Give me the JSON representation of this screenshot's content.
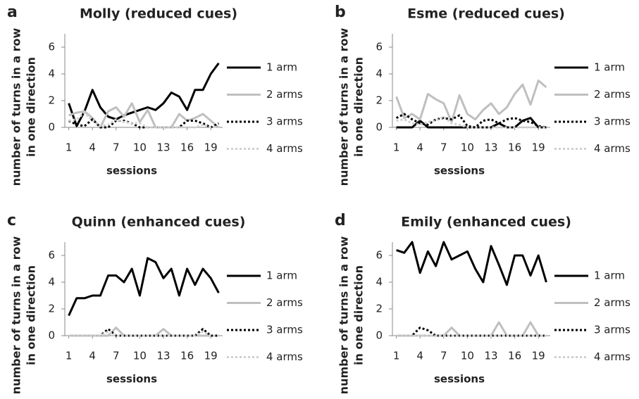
{
  "chart_data": [
    {
      "type": "line",
      "panel": "a",
      "title": "Molly (reduced cues)",
      "xlabel": "sessions",
      "ylabel": [
        "number of turns in a row",
        "in one direction"
      ],
      "x": [
        1,
        2,
        3,
        4,
        5,
        6,
        7,
        8,
        9,
        10,
        11,
        12,
        13,
        14,
        15,
        16,
        17,
        18,
        19,
        20
      ],
      "xlim": [
        0.5,
        20.5
      ],
      "xticks": [
        1,
        4,
        7,
        10,
        13,
        16,
        19
      ],
      "ylim": [
        0,
        7
      ],
      "yticks": [
        0,
        2,
        4,
        6
      ],
      "series": [
        {
          "name": "1 arm",
          "color": "#000000",
          "style": "solid",
          "values": [
            1.8,
            0.1,
            1.2,
            2.8,
            1.5,
            0.8,
            0.6,
            0.9,
            1.1,
            1.3,
            1.5,
            1.3,
            1.8,
            2.6,
            2.3,
            1.3,
            2.8,
            2.8,
            4.0,
            4.8
          ]
        },
        {
          "name": "2 arms",
          "color": "#bfbfbf",
          "style": "solid",
          "values": [
            0.9,
            1.1,
            1.2,
            0.7,
            0,
            1.2,
            1.5,
            0.8,
            1.8,
            0.4,
            1.3,
            0,
            0,
            0,
            1.0,
            0.5,
            0.7,
            1.0,
            0.5,
            0
          ]
        },
        {
          "name": "3 arms",
          "color": "#000000",
          "style": "dotted",
          "values": [
            0.5,
            0.2,
            0.1,
            0.6,
            0,
            0,
            0.5,
            0.5,
            0.3,
            0,
            0,
            0,
            0,
            0,
            0,
            0.5,
            0.5,
            0.3,
            0,
            0.3
          ]
        },
        {
          "name": "4 arms",
          "color": "#d0d0d0",
          "style": "dotted",
          "values": [
            0.5,
            0.6,
            1.1,
            0.5,
            0.1,
            0.2,
            0.6,
            0.4,
            0.3,
            0.3,
            0,
            0,
            0,
            0,
            0,
            0,
            0,
            0.2,
            0,
            0.1
          ]
        }
      ]
    },
    {
      "type": "line",
      "panel": "b",
      "title": "Esme (reduced cues)",
      "xlabel": "sessions",
      "ylabel": [
        "number of turns in a row",
        "in one direction"
      ],
      "x": [
        1,
        2,
        3,
        4,
        5,
        6,
        7,
        8,
        9,
        10,
        11,
        12,
        13,
        14,
        15,
        16,
        17,
        18,
        19,
        20
      ],
      "xlim": [
        0.5,
        20.5
      ],
      "xticks": [
        1,
        4,
        7,
        10,
        13,
        16,
        19
      ],
      "ylim": [
        0,
        7
      ],
      "yticks": [
        0,
        2,
        4,
        6
      ],
      "series": [
        {
          "name": "1 arm",
          "color": "#000000",
          "style": "solid",
          "values": [
            0,
            0,
            0,
            0.5,
            0,
            0,
            0,
            0,
            0,
            0,
            0,
            0,
            0,
            0.3,
            0,
            0,
            0.5,
            0.7,
            0,
            0
          ]
        },
        {
          "name": "2 arms",
          "color": "#bfbfbf",
          "style": "solid",
          "values": [
            2.3,
            0.7,
            1.0,
            0.6,
            2.5,
            2.1,
            1.8,
            0.4,
            2.4,
            1.0,
            0.6,
            1.3,
            1.8,
            1.0,
            1.5,
            2.5,
            3.2,
            1.7,
            3.5,
            3.0
          ]
        },
        {
          "name": "3 arms",
          "color": "#000000",
          "style": "dotted",
          "values": [
            0.7,
            1.0,
            0.6,
            0.3,
            0.2,
            0.6,
            0.7,
            0.6,
            0.9,
            0.1,
            0,
            0.5,
            0.6,
            0.3,
            0.6,
            0.7,
            0.5,
            0.4,
            0.1,
            0
          ]
        },
        {
          "name": "4 arms",
          "color": "#d0d0d0",
          "style": "dotted",
          "values": [
            0.5,
            0.6,
            0.3,
            0.2,
            0.4,
            0.5,
            0.8,
            0.3,
            0.2,
            0,
            0,
            0,
            0,
            0,
            0,
            0,
            0,
            0,
            0,
            0
          ]
        }
      ]
    },
    {
      "type": "line",
      "panel": "c",
      "title": "Quinn (enhanced cues)",
      "xlabel": "sessions",
      "ylabel": [
        "number of turns in a row",
        "in one direction"
      ],
      "x": [
        1,
        2,
        3,
        4,
        5,
        6,
        7,
        8,
        9,
        10,
        11,
        12,
        13,
        14,
        15,
        16,
        17,
        18,
        19,
        20
      ],
      "xlim": [
        0.5,
        20.5
      ],
      "xticks": [
        1,
        4,
        7,
        10,
        13,
        16,
        19
      ],
      "ylim": [
        0,
        7
      ],
      "yticks": [
        0,
        2,
        4,
        6
      ],
      "series": [
        {
          "name": "1 arm",
          "color": "#000000",
          "style": "solid",
          "values": [
            1.5,
            2.8,
            2.8,
            3.0,
            3.0,
            4.5,
            4.5,
            4.0,
            5.0,
            3.0,
            5.8,
            5.5,
            4.3,
            5.0,
            3.0,
            5.0,
            3.8,
            5.0,
            4.3,
            3.2
          ]
        },
        {
          "name": "2 arms",
          "color": "#bfbfbf",
          "style": "solid",
          "values": [
            0,
            0,
            0,
            0,
            0,
            0,
            0.6,
            0,
            0,
            0,
            0,
            0,
            0.5,
            0,
            0,
            0,
            0,
            0,
            0,
            0
          ]
        },
        {
          "name": "3 arms",
          "color": "#000000",
          "style": "dotted",
          "values": [
            0,
            0,
            0,
            0,
            0,
            0.5,
            0,
            0,
            0,
            0,
            0,
            0,
            0,
            0,
            0,
            0,
            0,
            0.5,
            0,
            0
          ]
        },
        {
          "name": "4 arms",
          "color": "#d0d0d0",
          "style": "dotted",
          "values": [
            0,
            0,
            0,
            0,
            0,
            0.3,
            0,
            0,
            0,
            0,
            0,
            0,
            0,
            0,
            0,
            0,
            0,
            0.3,
            0,
            0
          ]
        }
      ]
    },
    {
      "type": "line",
      "panel": "d",
      "title": "Emily (enhanced cues)",
      "xlabel": "sessions",
      "ylabel": [
        "number of turns in a row",
        "in one direction"
      ],
      "x": [
        1,
        2,
        3,
        4,
        5,
        6,
        7,
        8,
        9,
        10,
        11,
        12,
        13,
        14,
        15,
        16,
        17,
        18,
        19,
        20
      ],
      "xlim": [
        0.5,
        20.5
      ],
      "xticks": [
        1,
        4,
        7,
        10,
        13,
        16,
        19
      ],
      "ylim": [
        0,
        7
      ],
      "yticks": [
        0,
        2,
        4,
        6
      ],
      "series": [
        {
          "name": "1 arm",
          "color": "#000000",
          "style": "solid",
          "values": [
            6.4,
            6.2,
            7.0,
            4.7,
            6.3,
            5.2,
            7.0,
            5.7,
            6.0,
            6.3,
            5.0,
            4.0,
            6.7,
            5.3,
            3.8,
            6.0,
            6.0,
            4.5,
            6.0,
            4.0
          ]
        },
        {
          "name": "2 arms",
          "color": "#bfbfbf",
          "style": "solid",
          "values": [
            0,
            0,
            0,
            0,
            0,
            0,
            0,
            0.6,
            0,
            0,
            0,
            0,
            0,
            1.0,
            0,
            0,
            0,
            1.0,
            0,
            0
          ]
        },
        {
          "name": "3 arms",
          "color": "#000000",
          "style": "dotted",
          "values": [
            0,
            0,
            0,
            0.6,
            0.4,
            0,
            0,
            0,
            0,
            0,
            0,
            0,
            0,
            0,
            0,
            0,
            0,
            0,
            0,
            0
          ]
        },
        {
          "name": "4 arms",
          "color": "#d0d0d0",
          "style": "dotted",
          "values": [
            0,
            0,
            0,
            0,
            0,
            0,
            0,
            0,
            0,
            0,
            0,
            0,
            0,
            0,
            0,
            0,
            0,
            0,
            0,
            0
          ]
        }
      ]
    }
  ]
}
